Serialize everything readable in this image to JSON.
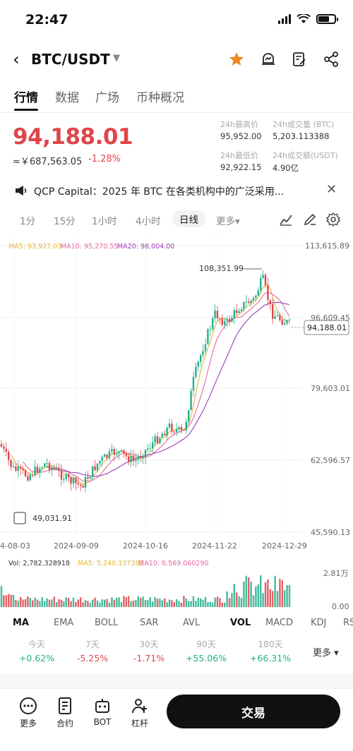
{
  "status_bar": {
    "time": "22:47"
  },
  "header": {
    "pair": "BTC/USDT",
    "caret": "▼"
  },
  "tabs": [
    {
      "label": "行情"
    },
    {
      "label": "数据"
    },
    {
      "label": "广场"
    },
    {
      "label": "币种概况"
    }
  ],
  "price": {
    "last": "94,188.01",
    "cny": "≈￥687,563.05",
    "change": "-1.28%"
  },
  "stats": {
    "high_label": "24h最高价",
    "high": "95,952.00",
    "vol_btc_label": "24h成交量 (BTC)",
    "vol_btc": "5,203.113388",
    "low_label": "24h最低价",
    "low": "92,922.15",
    "vol_usdt_label": "24h成交额(USDT)",
    "vol_usdt": "4.90亿"
  },
  "news": {
    "text": "QCP Capital：2025 年 BTC 在各类机构中的广泛采用..."
  },
  "intervals": [
    {
      "label": "1分"
    },
    {
      "label": "15分"
    },
    {
      "label": "1小时"
    },
    {
      "label": "4小时"
    },
    {
      "label": "日线"
    },
    {
      "label": "更多▾"
    }
  ],
  "ma_legend": {
    "ma5": "MA5: 93,927.03",
    "ma10": "MA10: 95,270.55",
    "ma20": "MA20: 98,004.00"
  },
  "vol_legend": {
    "vol": "Vol: 2,782.328918",
    "ma5": "MA5: 5,240.337382",
    "ma10": "MA10: 6,569.060290"
  },
  "colors": {
    "up": "#21b08c",
    "down": "#e0454b",
    "ma5": "#e7b43a",
    "ma10": "#e66aa3",
    "ma20": "#9a3fb5"
  },
  "chart_data": {
    "type": "candlestick",
    "y_ticks": [
      "113,615.89",
      "96,609.45",
      "79,603.01",
      "62,596.57",
      "45,590.13"
    ],
    "x_ticks": [
      "4-08-03",
      "2024-09-09",
      "2024-10-16",
      "2024-11-22",
      "2024-12-29"
    ],
    "high_marker": "108,351.99",
    "low_marker": "49,031.91",
    "last_price_tag": "94,188.01",
    "vol_y_ticks": [
      "2.81万",
      "0.00"
    ]
  },
  "indicators": [
    {
      "label": "MA"
    },
    {
      "label": "EMA"
    },
    {
      "label": "BOLL"
    },
    {
      "label": "SAR"
    },
    {
      "label": "AVL"
    },
    {
      "label": "VOL"
    },
    {
      "label": "MACD"
    },
    {
      "label": "KDJ"
    },
    {
      "label": "RS"
    }
  ],
  "performance": [
    {
      "label": "今天",
      "value": "+0.62%",
      "dir": "up"
    },
    {
      "label": "7天",
      "value": "-5.25%",
      "dir": "down"
    },
    {
      "label": "30天",
      "value": "-1.71%",
      "dir": "down"
    },
    {
      "label": "90天",
      "value": "+55.06%",
      "dir": "up"
    },
    {
      "label": "180天",
      "value": "+66.31%",
      "dir": "up"
    }
  ],
  "more_label": "更多 ▾",
  "bottom_bar": {
    "more": "更多",
    "contract": "合约",
    "bot": "BOT",
    "leverage": "杠杆",
    "trade": "交易"
  }
}
